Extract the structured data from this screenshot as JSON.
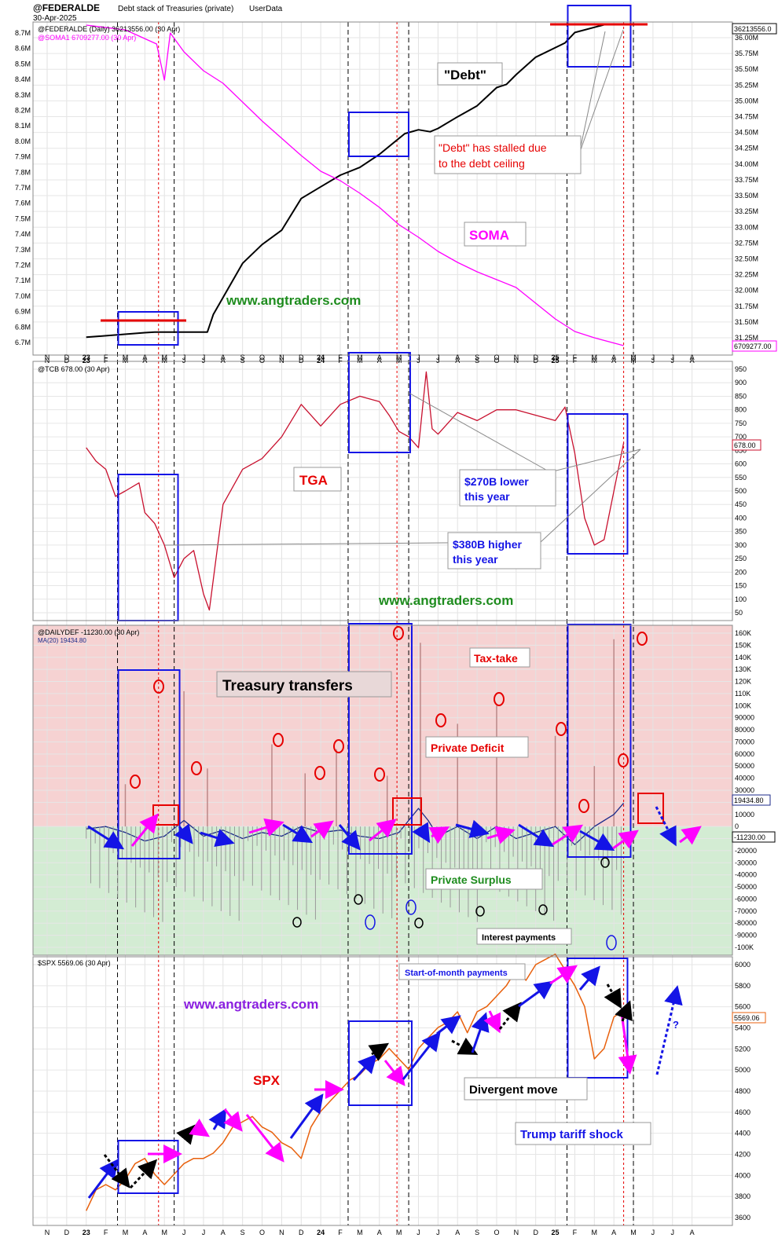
{
  "header": {
    "symbol": "@FEDERALDE",
    "subtitle": "Debt stack of Treasuries (private)",
    "source": "UserData",
    "date": "30-Apr-2025"
  },
  "x_axis": {
    "labels": [
      "N",
      "D",
      "23",
      "F",
      "M",
      "A",
      "M",
      "J",
      "J",
      "A",
      "S",
      "O",
      "N",
      "D",
      "24",
      "F",
      "M",
      "A",
      "M",
      "J",
      "J",
      "A",
      "S",
      "O",
      "N",
      "D",
      "25",
      "F",
      "M",
      "A",
      "M",
      "J",
      "J",
      "A"
    ],
    "bold": [
      "23",
      "24",
      "25"
    ]
  },
  "chart_data": [
    {
      "id": "panel1",
      "type": "line",
      "legend": [
        {
          "label": "@FEDERALDE (Daily) 36213556.00 (30 Apr)",
          "color": "#000000"
        },
        {
          "label": "@SOMA1 6709277.00 (30 Apr)",
          "color": "#ff00ff"
        }
      ],
      "left_axis_ticks": [
        "8.7M",
        "8.6M",
        "8.5M",
        "8.4M",
        "8.3M",
        "8.2M",
        "8.1M",
        "8.0M",
        "7.9M",
        "7.8M",
        "7.7M",
        "7.6M",
        "7.5M",
        "7.4M",
        "7.3M",
        "7.2M",
        "7.1M",
        "7.0M",
        "6.9M",
        "6.8M",
        "6.7M"
      ],
      "left_axis_range": [
        6.7,
        8.7
      ],
      "right_axis_ticks": [
        "36.00M",
        "35.75M",
        "35.50M",
        "35.25M",
        "35.00M",
        "34.75M",
        "34.50M",
        "34.25M",
        "34.00M",
        "33.75M",
        "33.50M",
        "33.25M",
        "33.00M",
        "32.75M",
        "32.50M",
        "32.25M",
        "32.00M",
        "31.75M",
        "31.50M",
        "31.25M"
      ],
      "right_axis_range": [
        31.25,
        36.0
      ],
      "last_values": {
        "debt": "36213556.0",
        "soma": "6709277.00"
      },
      "series": [
        {
          "name": "@FEDERALDE",
          "color": "#000000",
          "unit": "$M (trillions scale)",
          "x": [
            0.0,
            3.0,
            3.5,
            6.2,
            6.5,
            8.0,
            9.0,
            10.0,
            11.0,
            12.0,
            13.0,
            14.0,
            15.0,
            16.3,
            17.0,
            17.6,
            18.0,
            19.0,
            20.0,
            21.0,
            21.5,
            22.0,
            23.0,
            24.5,
            25.0,
            26.5,
            27.5
          ],
          "values": [
            31.38,
            31.45,
            31.46,
            31.46,
            31.73,
            32.52,
            32.81,
            33.03,
            33.52,
            33.7,
            33.88,
            34.0,
            34.2,
            34.52,
            34.58,
            34.55,
            34.6,
            34.78,
            34.95,
            35.23,
            35.28,
            35.43,
            35.7,
            35.92,
            36.08,
            36.2,
            36.21
          ]
        },
        {
          "name": "@SOMA1",
          "color": "#ff00ff",
          "unit": "$M (trillions scale)",
          "x": [
            0.0,
            2.0,
            3.6,
            4.0,
            4.3,
            5.0,
            6.0,
            7.0,
            8.0,
            9.0,
            10.0,
            11.0,
            12.0,
            13.0,
            14.0,
            15.0,
            16.0,
            17.0,
            18.0,
            19.0,
            20.0,
            21.0,
            22.0,
            23.0,
            24.0,
            25.0,
            26.0,
            27.5
          ],
          "values": [
            8.75,
            8.72,
            8.63,
            8.4,
            8.7,
            8.58,
            8.46,
            8.38,
            8.26,
            8.14,
            8.03,
            7.92,
            7.82,
            7.76,
            7.68,
            7.59,
            7.48,
            7.4,
            7.31,
            7.24,
            7.18,
            7.13,
            7.08,
            6.98,
            6.88,
            6.8,
            6.76,
            6.71
          ]
        }
      ],
      "annotations": [
        "\"Debt\"",
        "\"Debt\" has stalled due",
        "to the debt ceiling",
        "SOMA",
        "www.angtraders.com"
      ]
    },
    {
      "id": "panel2",
      "type": "line",
      "legend": [
        {
          "label": "@TCB 678.00 (30 Apr)",
          "color": "#c8102e"
        }
      ],
      "right_axis_ticks": [
        "950",
        "900",
        "850",
        "800",
        "750",
        "700",
        "650",
        "600",
        "550",
        "500",
        "450",
        "400",
        "350",
        "300",
        "250",
        "200",
        "150",
        "100",
        "50"
      ],
      "right_axis_range": [
        50,
        950
      ],
      "last_value": "678.00",
      "series": [
        {
          "name": "@TCB",
          "color": "#c8102e",
          "unit": "$B",
          "x": [
            0.0,
            0.5,
            1.0,
            1.5,
            2.0,
            2.7,
            3.0,
            3.5,
            4.0,
            4.5,
            5.0,
            5.5,
            6.0,
            6.3,
            7.0,
            8.0,
            9.0,
            10.0,
            11.0,
            12.0,
            13.0,
            14.0,
            15.0,
            15.5,
            16.0,
            16.5,
            17.0,
            17.4,
            17.7,
            18.0,
            19.0,
            20.0,
            21.0,
            22.0,
            23.0,
            24.0,
            24.5,
            25.0,
            25.5,
            26.0,
            26.5,
            27.0,
            27.5
          ],
          "values": [
            660,
            610,
            580,
            480,
            500,
            530,
            420,
            380,
            300,
            180,
            250,
            280,
            120,
            60,
            450,
            580,
            620,
            700,
            820,
            740,
            820,
            850,
            830,
            780,
            720,
            700,
            660,
            940,
            730,
            710,
            790,
            760,
            800,
            800,
            780,
            760,
            810,
            640,
            400,
            300,
            320,
            500,
            678
          ]
        }
      ],
      "annotations": [
        "TGA",
        "$270B lower",
        "this year",
        "$380B higher",
        "this year",
        "www.angtraders.com"
      ]
    },
    {
      "id": "panel3",
      "type": "line",
      "legend": [
        {
          "label": "@DAILYDEF -11230.00 (30 Apr)",
          "color": "#000000"
        },
        {
          "label": "MA(20) 19434.80",
          "color": "#1b2a8a"
        }
      ],
      "right_axis_ticks": [
        "160K",
        "150K",
        "140K",
        "130K",
        "120K",
        "110K",
        "100K",
        "90000",
        "80000",
        "70000",
        "60000",
        "50000",
        "40000",
        "30000",
        "20000",
        "10000",
        "0",
        "-10000",
        "-20000",
        "-30000",
        "-40000",
        "-50000",
        "-60000",
        "-70000",
        "-80000",
        "-90000",
        "-100K"
      ],
      "right_axis_range": [
        -100000,
        160000
      ],
      "last_values": {
        "ma": "19434.80",
        "daily": "-11230.00"
      },
      "spikes": {
        "x": [
          2.0,
          5.0,
          6.2,
          9.5,
          11.2,
          12.8,
          15.4,
          17.1,
          19.0,
          21.0,
          24.0,
          26.0,
          27.0
        ],
        "values": [
          35000,
          112000,
          48000,
          68000,
          44000,
          64000,
          42000,
          152000,
          85000,
          100000,
          75000,
          50000,
          155000
        ]
      },
      "series": [
        {
          "name": "MA(20)",
          "color": "#1b2a8a",
          "x": [
            0.0,
            1.0,
            2.0,
            3.0,
            4.0,
            5.0,
            6.0,
            7.0,
            8.0,
            9.0,
            10.0,
            11.0,
            12.0,
            13.0,
            14.0,
            15.0,
            16.0,
            17.0,
            17.5,
            18.0,
            19.0,
            20.0,
            21.0,
            22.0,
            23.0,
            24.0,
            25.0,
            26.0,
            27.0,
            27.5
          ],
          "values": [
            -2000,
            0,
            -5000,
            -12000,
            -8000,
            5000,
            -8000,
            -3000,
            -10000,
            -5000,
            -8000,
            0,
            -5000,
            -3000,
            -8000,
            -10000,
            -5000,
            15000,
            5000,
            -8000,
            0,
            -10000,
            0,
            -10000,
            -5000,
            0,
            -15000,
            0,
            10000,
            19434
          ]
        }
      ],
      "annotations": [
        "Treasury transfers",
        "Tax-take",
        "Private Deficit",
        "Private Surplus",
        "Interest payments",
        "Start-of-month payments"
      ]
    },
    {
      "id": "panel4",
      "type": "line",
      "legend": [
        {
          "label": "$SPX 5569.06 (30 Apr)",
          "color": "#e8600c"
        }
      ],
      "right_axis_ticks": [
        "6000",
        "5800",
        "5600",
        "5400",
        "5200",
        "5000",
        "4800",
        "4600",
        "4400",
        "4200",
        "4000",
        "3800",
        "3600"
      ],
      "right_axis_range": [
        3600,
        6000
      ],
      "last_value": "5569.06",
      "series": [
        {
          "name": "$SPX",
          "color": "#e8600c",
          "x": [
            0.0,
            0.5,
            1.0,
            1.5,
            2.0,
            2.5,
            3.0,
            3.5,
            4.0,
            4.5,
            5.0,
            5.5,
            6.0,
            6.5,
            7.0,
            7.5,
            8.0,
            8.5,
            9.0,
            9.5,
            10.0,
            10.5,
            11.0,
            11.5,
            12.0,
            12.5,
            13.0,
            13.5,
            14.0,
            14.5,
            15.0,
            15.5,
            16.0,
            16.5,
            17.0,
            17.5,
            18.0,
            18.5,
            19.0,
            19.5,
            20.0,
            20.5,
            21.0,
            21.5,
            22.0,
            22.5,
            23.0,
            23.5,
            24.0,
            24.5,
            25.0,
            25.5,
            26.0,
            26.5,
            27.0,
            27.5
          ],
          "values": [
            3650,
            3850,
            3900,
            3850,
            3950,
            4100,
            4150,
            4000,
            3900,
            4000,
            4100,
            4150,
            4150,
            4200,
            4300,
            4450,
            4500,
            4550,
            4450,
            4400,
            4300,
            4250,
            4150,
            4450,
            4600,
            4700,
            4800,
            4900,
            4950,
            5050,
            5100,
            5200,
            5100,
            5000,
            5200,
            5300,
            5400,
            5450,
            5550,
            5350,
            5550,
            5600,
            5700,
            5800,
            5950,
            5850,
            6000,
            6050,
            6100,
            5950,
            5800,
            5600,
            5100,
            5200,
            5500,
            5569
          ]
        }
      ],
      "annotations": [
        "SPX",
        "Divergent move",
        "Trump tariff shock",
        "www.angtraders.com",
        "?"
      ]
    }
  ],
  "colors": {
    "blue_box": "#1414e6",
    "red_box": "#e60000",
    "pink_zone": "#f6d2d2",
    "green_zone": "#d3ecd3",
    "magenta": "#ff00ff",
    "dark_blue": "#1b2a8a",
    "red_line": "#c8102e",
    "orange": "#e8600c",
    "watermark_green": "#1e8c1e"
  }
}
